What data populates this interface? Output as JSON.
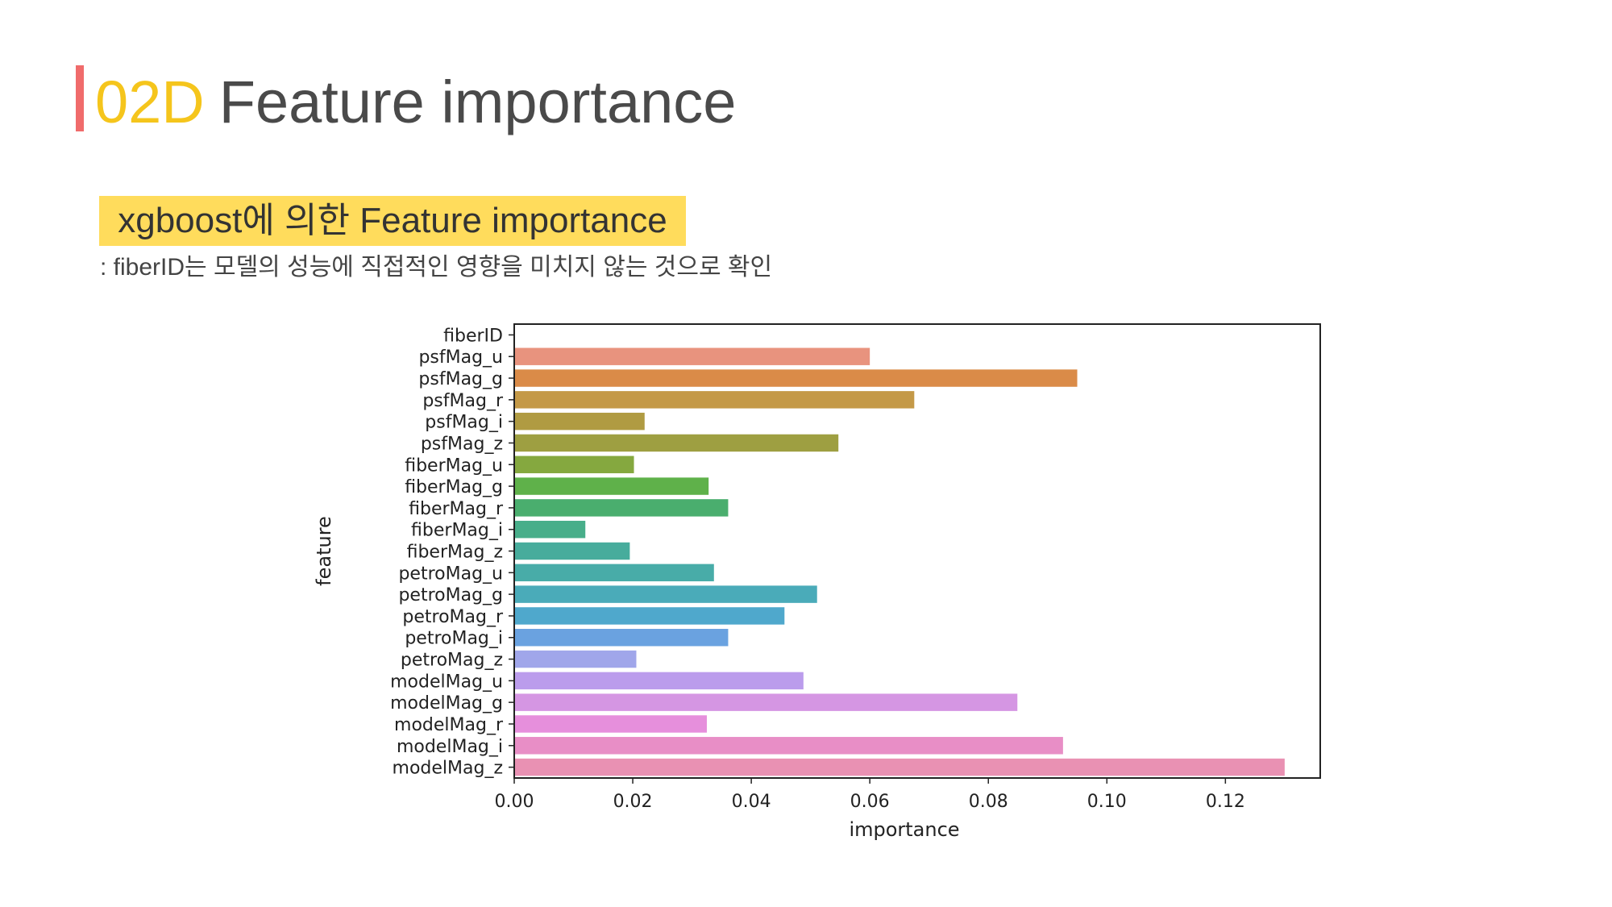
{
  "header": {
    "code": "02D",
    "title": "Feature importance"
  },
  "subtitle": "xgboost에 의한 Feature importance",
  "note": ": fiberID는 모델의 성능에 직접적인 영향을 미치지 않는 것으로 확인",
  "colors": {
    "accent": "#f06b6b",
    "code": "#f5c51c",
    "title": "#4a4a4a",
    "highlight": "#ffdc5c"
  },
  "chart_data": {
    "type": "bar",
    "orientation": "horizontal",
    "xlabel": "importance",
    "ylabel": "feature",
    "xlim": [
      0,
      0.136
    ],
    "xticks": [
      "0.00",
      "0.02",
      "0.04",
      "0.06",
      "0.08",
      "0.10",
      "0.12"
    ],
    "categories": [
      "fiberID",
      "psfMag_u",
      "psfMag_g",
      "psfMag_r",
      "psfMag_i",
      "psfMag_z",
      "fiberMag_u",
      "fiberMag_g",
      "fiberMag_r",
      "fiberMag_i",
      "fiberMag_z",
      "petroMag_u",
      "petroMag_g",
      "petroMag_r",
      "petroMag_i",
      "petroMag_z",
      "modelMag_u",
      "modelMag_g",
      "modelMag_r",
      "modelMag_i",
      "modelMag_z"
    ],
    "values": [
      0.0,
      0.06,
      0.095,
      0.0675,
      0.022,
      0.0547,
      0.0202,
      0.0328,
      0.0361,
      0.012,
      0.0195,
      0.0337,
      0.0511,
      0.0456,
      0.0361,
      0.0206,
      0.0488,
      0.0849,
      0.0325,
      0.0926,
      0.13
    ],
    "bar_colors": [
      "#e8937e",
      "#e8937e",
      "#da8b48",
      "#c49947",
      "#b09b42",
      "#9e9f41",
      "#85a83f",
      "#5fb14a",
      "#4aae6e",
      "#48ae8a",
      "#47ac9c",
      "#48aca8",
      "#4aabb9",
      "#4fa8cc",
      "#6aa2e0",
      "#a0a6ea",
      "#bb9cec",
      "#d596e3",
      "#e68fdc",
      "#e88ec6",
      "#e991b3"
    ]
  }
}
